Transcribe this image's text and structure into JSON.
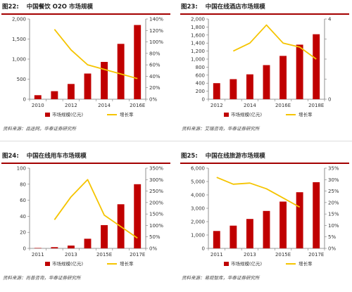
{
  "chart_data": [
    {
      "figure_label": "图22:",
      "title": "中国餐饮 O2O 市场规模",
      "type": "bar",
      "categories": [
        "2010",
        "2011",
        "2012",
        "2013",
        "2014",
        "2015",
        "2016E"
      ],
      "x_tick_labels": [
        "2010",
        "",
        "2012",
        "",
        "2014",
        "",
        "2016E"
      ],
      "series": [
        {
          "name": "市场规模(亿元)",
          "type": "bar",
          "axis": "left",
          "color": "#c00000",
          "values": [
            100,
            200,
            380,
            640,
            930,
            1380,
            1850
          ]
        },
        {
          "name": "增长率",
          "type": "line",
          "axis": "right",
          "color": "#f5c400",
          "values": [
            null,
            1.22,
            0.86,
            0.6,
            0.52,
            0.44,
            0.36
          ]
        }
      ],
      "left_axis": {
        "ylim": [
          0,
          2000
        ],
        "ticks": [
          "0",
          "500",
          "1,000",
          "1,500",
          "2,000"
        ]
      },
      "right_axis": {
        "ylim": [
          0,
          1.4
        ],
        "ticks": [
          "0%",
          "20%",
          "40%",
          "60%",
          "80%",
          "100%",
          "120%",
          "140%"
        ]
      },
      "legend": [
        "市场规模(亿元)",
        "增长率"
      ],
      "source": "资料来源：品途网，华泰证券研究所"
    },
    {
      "figure_label": "图23:",
      "title": "中国在线酒店市场规模",
      "type": "bar",
      "categories": [
        "2012",
        "2013",
        "2014",
        "2015",
        "2016E",
        "2017E",
        "2018E"
      ],
      "x_tick_labels": [
        "2012",
        "",
        "2014",
        "",
        "2016E",
        "",
        "2018E"
      ],
      "series": [
        {
          "name": "市场规模(亿元)",
          "type": "bar",
          "axis": "left",
          "color": "#c00000",
          "values": [
            400,
            500,
            620,
            850,
            1080,
            1360,
            1620
          ]
        },
        {
          "name": "增长率",
          "type": "line",
          "axis": "right",
          "color": "#f5c400",
          "values": [
            null,
            0.24,
            0.28,
            0.37,
            0.28,
            0.26,
            0.2
          ]
        }
      ],
      "left_axis": {
        "ylim": [
          0,
          2000
        ],
        "ticks": [
          "0",
          "200",
          "400",
          "600",
          "800",
          "1,000",
          "1,200",
          "1,400",
          "1,600",
          "1,800",
          "2,000"
        ]
      },
      "right_axis": {
        "ylim": [
          0,
          0.4
        ],
        "ticks": [
          "0",
          "",
          "",
          "",
          "4"
        ]
      },
      "legend": [
        "市场规模(亿元)",
        "增长率"
      ],
      "source": "资料来源：艾瑞咨询，华泰证券研究所"
    },
    {
      "figure_label": "图24:",
      "title": "中国在线用车市场规模",
      "type": "bar",
      "categories": [
        "2011",
        "2012",
        "2013",
        "2014",
        "2015E",
        "2016E",
        "2017E"
      ],
      "x_tick_labels": [
        "2011",
        "",
        "2013",
        "",
        "2015E",
        "",
        "2017E"
      ],
      "series": [
        {
          "name": "市场规模(亿元)",
          "type": "bar",
          "axis": "left",
          "color": "#c00000",
          "values": [
            0.5,
            1.5,
            3.5,
            12,
            29,
            55,
            80
          ]
        },
        {
          "name": "增长率",
          "type": "line",
          "axis": "right",
          "color": "#f5c400",
          "values": [
            null,
            1.25,
            2.25,
            3.0,
            1.45,
            0.95,
            0.45
          ]
        }
      ],
      "left_axis": {
        "ylim": [
          0,
          100
        ],
        "ticks": [
          "0",
          "20",
          "40",
          "60",
          "80",
          "100"
        ]
      },
      "right_axis": {
        "ylim": [
          0,
          3.5
        ],
        "ticks": [
          "0%",
          "50%",
          "100%",
          "150%",
          "200%",
          "250%",
          "300%",
          "350%"
        ]
      },
      "legend": [
        "市场规模(亿元)",
        "增长率"
      ],
      "source": "资料来源：尚普咨询，华泰证券研究所"
    },
    {
      "figure_label": "图25:",
      "title": "中国在线旅游市场规模",
      "type": "bar",
      "categories": [
        "2011",
        "2012",
        "2013",
        "2014",
        "2015E",
        "2016E",
        "2017E"
      ],
      "x_tick_labels": [
        "2011",
        "",
        "2013",
        "",
        "2015E",
        "",
        "2017E"
      ],
      "series": [
        {
          "name": "市场规模(亿元)",
          "type": "bar",
          "axis": "left",
          "color": "#c00000",
          "values": [
            1300,
            1700,
            2200,
            2800,
            3500,
            4200,
            4950
          ]
        },
        {
          "name": "增长率",
          "type": "line",
          "axis": "right",
          "color": "#f5c400",
          "values": [
            0.31,
            0.28,
            0.285,
            0.26,
            0.22,
            0.18,
            null
          ]
        }
      ],
      "left_axis": {
        "ylim": [
          0,
          6000
        ],
        "ticks": [
          "0",
          "1,000",
          "2,000",
          "3,000",
          "4,000",
          "5,000",
          "6,000"
        ]
      },
      "right_axis": {
        "ylim": [
          0,
          0.35
        ],
        "ticks": [
          "0%",
          "5%",
          "10%",
          "15%",
          "20%",
          "25%",
          "30%",
          "35%"
        ]
      },
      "legend": [
        "市场规模(亿元)",
        "增长率"
      ],
      "source": "资料来源：易观智库，华泰证券研究所"
    }
  ]
}
